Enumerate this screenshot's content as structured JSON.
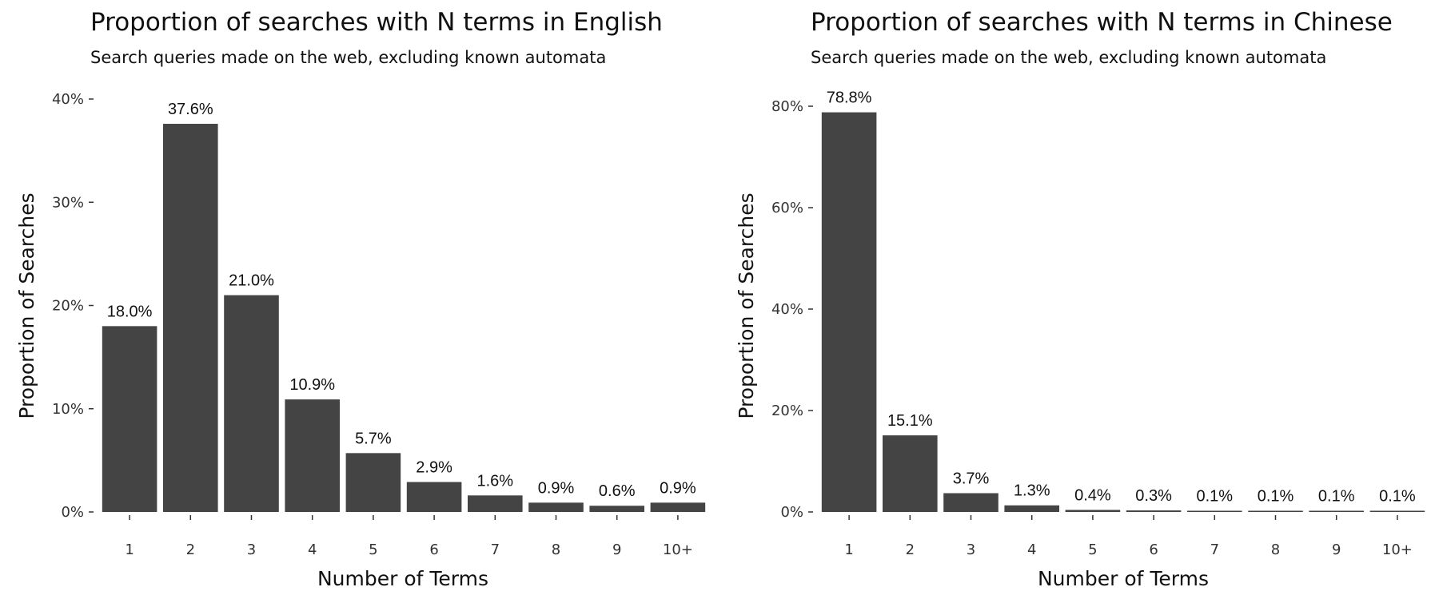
{
  "chart_data": [
    {
      "type": "bar",
      "title": "Proportion of searches with N terms in English",
      "subtitle": "Search queries made on the web, excluding known automata",
      "xlabel": "Number of Terms",
      "ylabel": "Proportion of Searches",
      "categories": [
        "1",
        "2",
        "3",
        "4",
        "5",
        "6",
        "7",
        "8",
        "9",
        "10+"
      ],
      "values": [
        18.0,
        37.6,
        21.0,
        10.9,
        5.7,
        2.9,
        1.6,
        0.9,
        0.6,
        0.9
      ],
      "data_labels": [
        "18.0%",
        "37.6%",
        "21.0%",
        "10.9%",
        "5.7%",
        "2.9%",
        "1.6%",
        "0.9%",
        "0.6%",
        "0.9%"
      ],
      "ylim": [
        0,
        40
      ],
      "yticks": [
        0,
        10,
        20,
        30,
        40
      ],
      "ytick_labels": [
        "0%",
        "10%",
        "20%",
        "30%",
        "40%"
      ],
      "grid": false,
      "bar_color": "#444444"
    },
    {
      "type": "bar",
      "title": "Proportion of searches with N terms in Chinese",
      "subtitle": "Search queries made on the web, excluding known automata",
      "xlabel": "Number of Terms",
      "ylabel": "Proportion of Searches",
      "categories": [
        "1",
        "2",
        "3",
        "4",
        "5",
        "6",
        "7",
        "8",
        "9",
        "10+"
      ],
      "values": [
        78.8,
        15.1,
        3.7,
        1.3,
        0.4,
        0.3,
        0.1,
        0.1,
        0.1,
        0.1
      ],
      "data_labels": [
        "78.8%",
        "15.1%",
        "3.7%",
        "1.3%",
        "0.4%",
        "0.3%",
        "0.1%",
        "0.1%",
        "0.1%",
        "0.1%"
      ],
      "ylim": [
        0,
        80
      ],
      "yticks": [
        0,
        20,
        40,
        60,
        80
      ],
      "ytick_labels": [
        "0%",
        "20%",
        "40%",
        "60%",
        "80%"
      ],
      "grid": false,
      "bar_color": "#444444"
    }
  ]
}
